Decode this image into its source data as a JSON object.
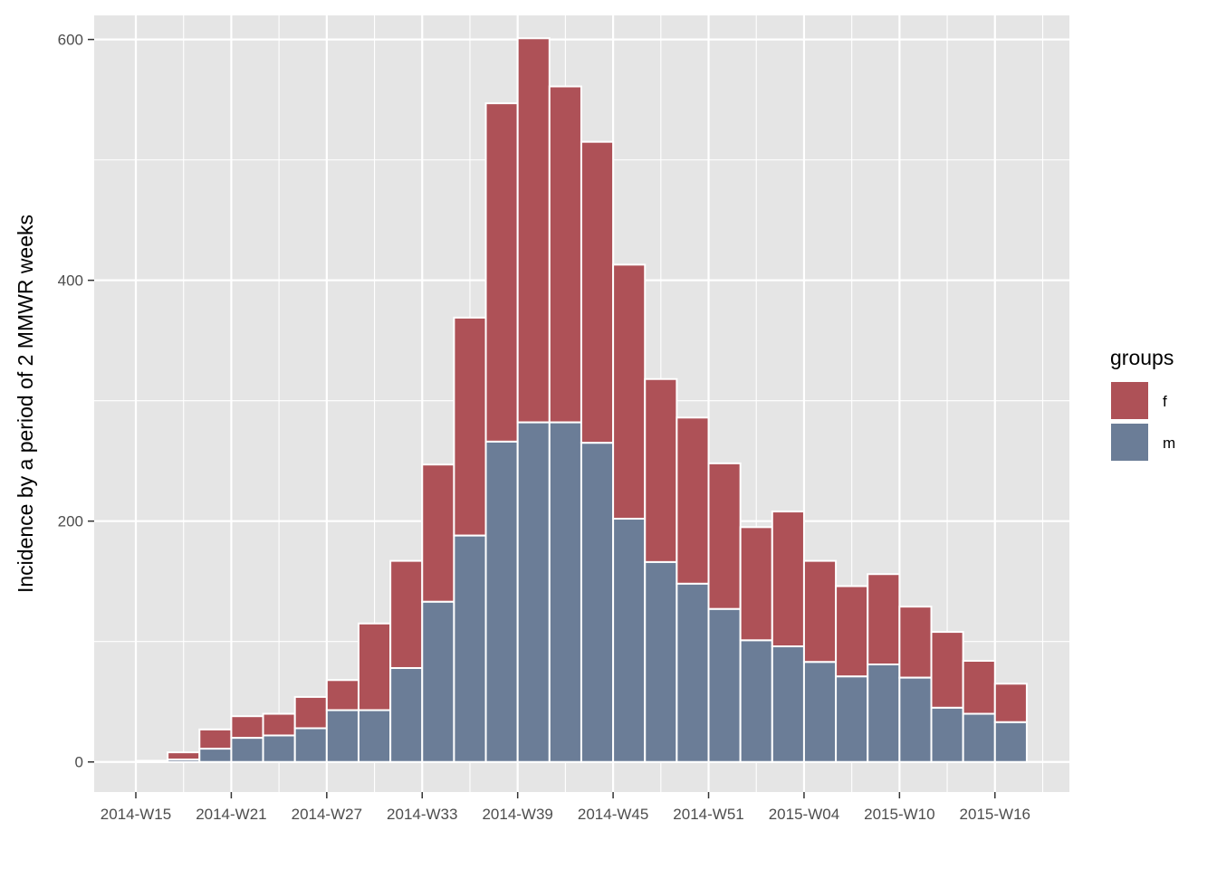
{
  "chart_data": {
    "type": "bar",
    "stacked": true,
    "title": "",
    "xlabel": "",
    "ylabel": "Incidence by a period of 2 MMWR weeks",
    "ylim": [
      -25,
      620
    ],
    "y_ticks": [
      0,
      200,
      400,
      600
    ],
    "x_tick_labels": [
      "2014-W15",
      "2014-W21",
      "2014-W27",
      "2014-W33",
      "2014-W39",
      "2014-W45",
      "2014-W51",
      "2015-W04",
      "2015-W10",
      "2015-W16"
    ],
    "categories": [
      "2014-W15",
      "2014-W17",
      "2014-W19",
      "2014-W21",
      "2014-W23",
      "2014-W25",
      "2014-W27",
      "2014-W29",
      "2014-W31",
      "2014-W33",
      "2014-W35",
      "2014-W37",
      "2014-W39",
      "2014-W41",
      "2014-W43",
      "2014-W45",
      "2014-W47",
      "2014-W49",
      "2014-W51",
      "2015-W01",
      "2015-W03",
      "2015-W05",
      "2015-W07",
      "2015-W09",
      "2015-W11",
      "2015-W13",
      "2015-W15",
      "2015-W17"
    ],
    "series": [
      {
        "name": "m",
        "color": "#6B7D97",
        "values": [
          1,
          2,
          11,
          20,
          22,
          28,
          43,
          43,
          78,
          133,
          188,
          266,
          282,
          282,
          265,
          202,
          166,
          148,
          127,
          101,
          96,
          83,
          71,
          81,
          70,
          45,
          40,
          33
        ]
      },
      {
        "name": "f",
        "color": "#AE5157",
        "values": [
          0,
          6,
          16,
          18,
          18,
          26,
          25,
          72,
          89,
          114,
          181,
          281,
          319,
          279,
          250,
          211,
          152,
          138,
          121,
          94,
          112,
          84,
          75,
          75,
          59,
          63,
          44,
          32
        ]
      }
    ],
    "grid": true,
    "legend": {
      "title": "groups",
      "placement": "right",
      "items": [
        {
          "label": "f",
          "color": "#AE5157"
        },
        {
          "label": "m",
          "color": "#6B7D97"
        }
      ]
    }
  }
}
